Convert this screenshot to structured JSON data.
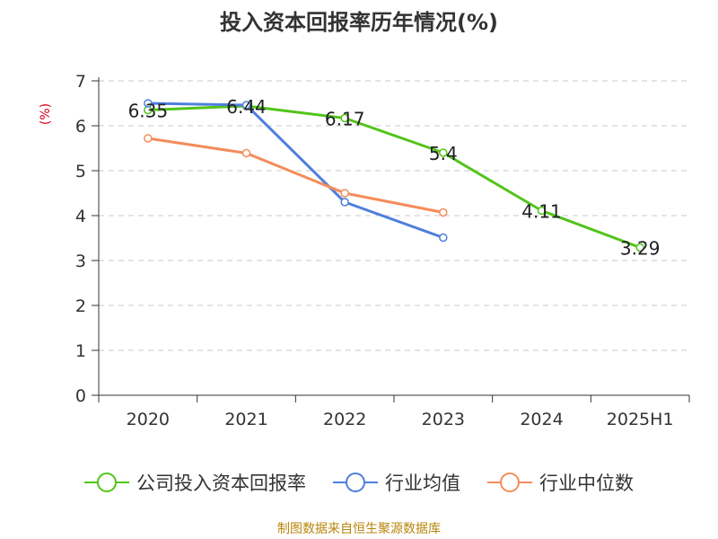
{
  "chart_data": {
    "type": "line",
    "title": "投入资本回报率历年情况(%)",
    "ylabel": "(%)",
    "xlabel": "",
    "categories": [
      "2020",
      "2021",
      "2022",
      "2023",
      "2024",
      "2025H1"
    ],
    "ylim": [
      0,
      7
    ],
    "yticks": [
      0,
      1,
      2,
      3,
      4,
      5,
      6,
      7
    ],
    "grid": true,
    "legend_position": "bottom",
    "series": [
      {
        "name": "公司投入资本回报率",
        "color": "#52c41a",
        "values": [
          6.35,
          6.44,
          6.17,
          5.4,
          4.11,
          3.29
        ],
        "labels": [
          "6.35",
          "6.44",
          "6.17",
          "5.4",
          "4.11",
          "3.29"
        ],
        "show_labels": true
      },
      {
        "name": "行业均值",
        "color": "#4f7fdc",
        "values": [
          6.5,
          6.46,
          4.3,
          3.51,
          null,
          null
        ],
        "show_labels": false
      },
      {
        "name": "行业中位数",
        "color": "#f58c5a",
        "values": [
          5.72,
          5.39,
          4.5,
          4.07,
          null,
          null
        ],
        "show_labels": false
      }
    ]
  },
  "footer": {
    "source": "制图数据来自恒生聚源数据库",
    "color": "#b8860b"
  },
  "ylabel_color": "#d9001b"
}
